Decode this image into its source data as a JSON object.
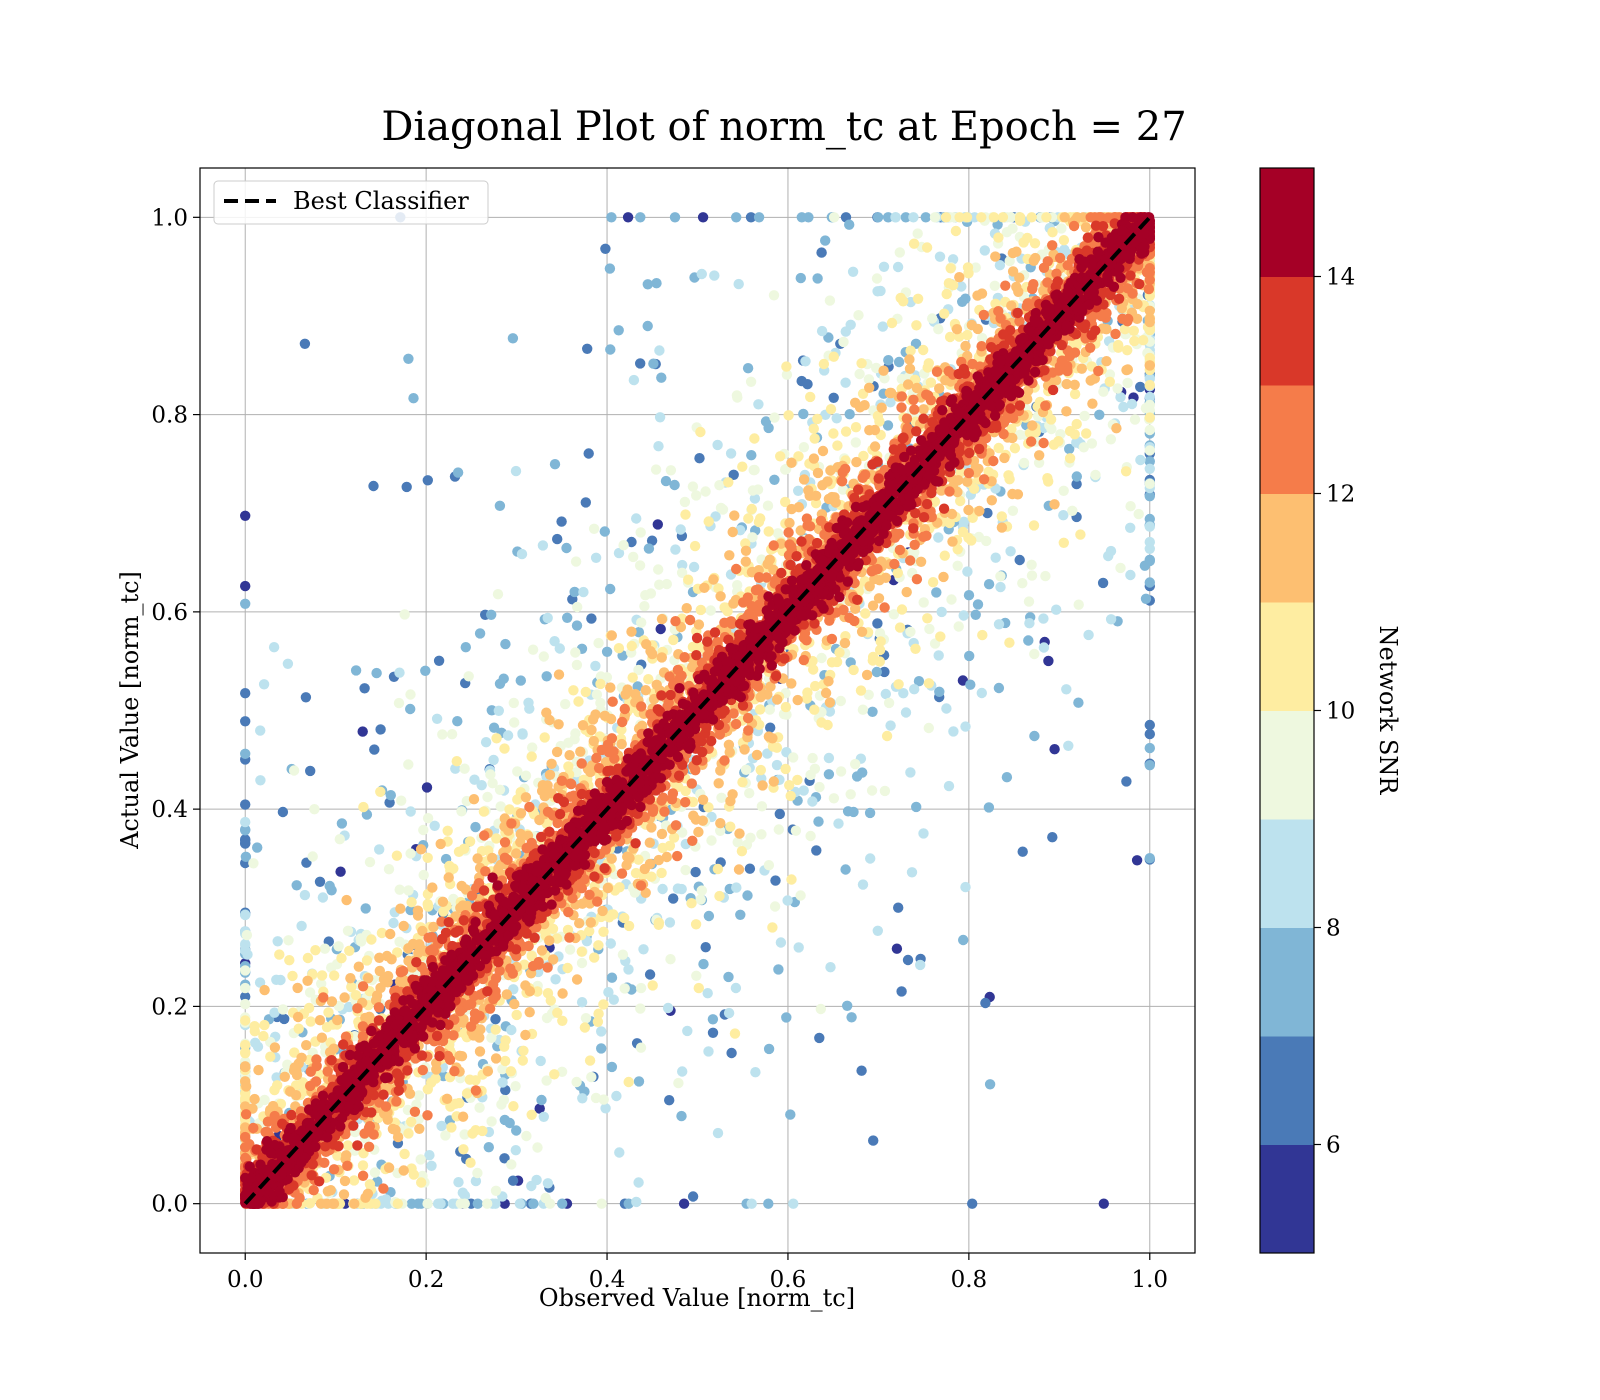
{
  "chart_data": {
    "type": "scatter",
    "title": "Diagonal Plot of norm_tc at Epoch = 27",
    "xlabel": "Observed Value [norm_tc]",
    "ylabel": "Actual Value [norm_tc]",
    "xlim": [
      -0.05,
      1.05
    ],
    "ylim": [
      -0.05,
      1.05
    ],
    "xticks": [
      0.0,
      0.2,
      0.4,
      0.6,
      0.8,
      1.0
    ],
    "yticks": [
      0.0,
      0.2,
      0.4,
      0.6,
      0.8,
      1.0
    ],
    "xtick_labels": [
      "0.0",
      "0.2",
      "0.4",
      "0.6",
      "0.8",
      "1.0"
    ],
    "ytick_labels": [
      "0.0",
      "0.2",
      "0.4",
      "0.6",
      "0.8",
      "1.0"
    ],
    "grid": true,
    "legend": {
      "placement": "upper-left",
      "entries": [
        {
          "label": "Best Classifier",
          "style": "dashed",
          "color": "#000000"
        }
      ]
    },
    "reference_line": {
      "name": "Best Classifier",
      "x": [
        0.0,
        1.0
      ],
      "y": [
        0.0,
        1.0
      ],
      "color": "#000000",
      "style": "dashed"
    },
    "colorbar": {
      "label": "Network SNR",
      "range": [
        5,
        15
      ],
      "tick_values": [
        6,
        8,
        10,
        12,
        14
      ],
      "tick_labels": [
        "6",
        "8",
        "10",
        "12",
        "14"
      ],
      "bins": [
        {
          "from": 5,
          "to": 6,
          "color": "#313695"
        },
        {
          "from": 6,
          "to": 7,
          "color": "#4a7ab7"
        },
        {
          "from": 7,
          "to": 8,
          "color": "#80b6d6"
        },
        {
          "from": 8,
          "to": 9,
          "color": "#bde2ee"
        },
        {
          "from": 9,
          "to": 10,
          "color": "#eef8df"
        },
        {
          "from": 10,
          "to": 11,
          "color": "#feeda1"
        },
        {
          "from": 11,
          "to": 12,
          "color": "#fdbf71"
        },
        {
          "from": 12,
          "to": 13,
          "color": "#f57c4a"
        },
        {
          "from": 13,
          "to": 14,
          "color": "#d93829"
        },
        {
          "from": 14,
          "to": 15,
          "color": "#a50026"
        }
      ]
    },
    "scatter_summary": {
      "x_range": [
        0.0,
        1.0
      ],
      "y_range": [
        0.0,
        1.0
      ],
      "structure": "dense band along the diagonal y = x with high SNR (13–15); lower-SNR points spread farther from the diagonal, forming fan-shaped clouds above the diagonal (upper-left) and below it (lower-right)"
    }
  }
}
